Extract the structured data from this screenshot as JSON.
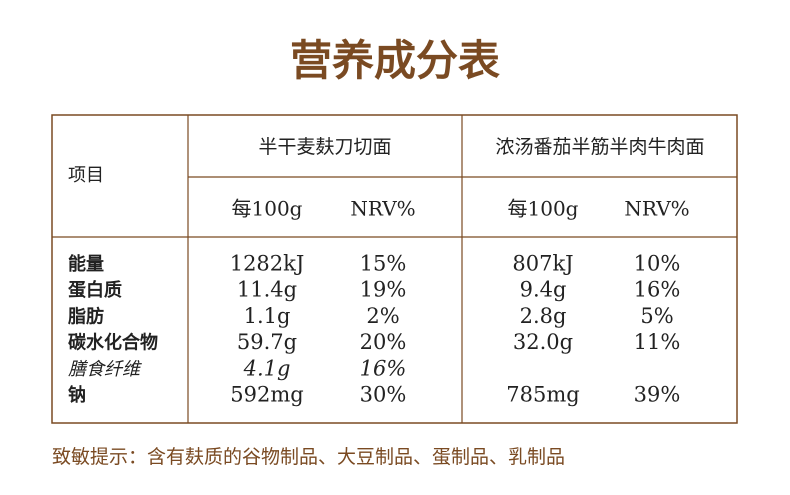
{
  "title": "营养成分表",
  "table": {
    "item_header": "项目",
    "products": [
      {
        "name": "半干麦麸刀切面",
        "columns": [
          "每100g",
          "NRV%"
        ]
      },
      {
        "name": "浓汤番茄半筋半肉牛肉面",
        "columns": [
          "每100g",
          "NRV%"
        ]
      }
    ],
    "rows": [
      {
        "name": "能量",
        "cells": [
          [
            "1282kJ",
            "15%"
          ],
          [
            "807kJ",
            "10%"
          ]
        ]
      },
      {
        "name": "蛋白质",
        "cells": [
          [
            "11.4g",
            "19%"
          ],
          [
            "9.4g",
            "16%"
          ]
        ]
      },
      {
        "name": "脂肪",
        "cells": [
          [
            "1.1g",
            "2%"
          ],
          [
            "2.8g",
            "5%"
          ]
        ]
      },
      {
        "name": "碳水化合物",
        "cells": [
          [
            "59.7g",
            "20%"
          ],
          [
            "32.0g",
            "11%"
          ]
        ]
      },
      {
        "name": "膳食纤维",
        "italic": true,
        "cells": [
          [
            "4.1g",
            "16%"
          ]
        ]
      },
      {
        "name": "钠",
        "cells": [
          [
            "592mg",
            "30%"
          ],
          [
            "785mg",
            "39%"
          ]
        ]
      }
    ]
  },
  "footer": "致敏提示：含有麸质的谷物制品、大豆制品、蛋制品、乳制品"
}
